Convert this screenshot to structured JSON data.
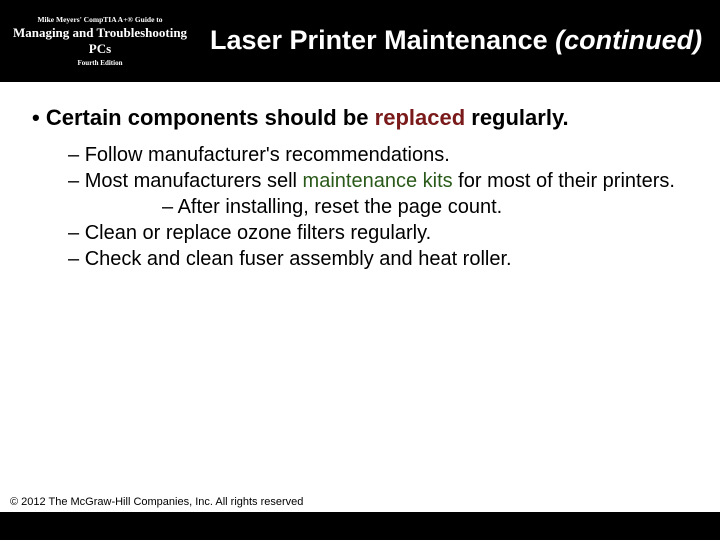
{
  "header": {
    "book": {
      "line1": "Mike Meyers' CompTIA A+® Guide to",
      "line2": "Managing and Troubleshooting PCs",
      "line3": "Fourth Edition"
    },
    "title_main": "Laser Printer Maintenance ",
    "title_cont": "(continued)"
  },
  "colors": {
    "header_bg": "#000000",
    "header_text": "#ffffff",
    "body_text": "#000000",
    "highlight_replaced": "#7a1a1a",
    "highlight_maintkits": "#2a5a1a"
  },
  "content": {
    "l1_pre": "Certain components should be ",
    "l1_hl": "replaced",
    "l1_post": " regularly.",
    "sub1": "Follow manufacturer's recommendations.",
    "sub2_pre": "Most manufacturers sell ",
    "sub2_hl": "maintenance kits",
    "sub2_post": " for most of their printers.",
    "sub2a": "After installing, reset the page count.",
    "sub3": "Clean or replace ozone filters regularly.",
    "sub4": "Check and clean fuser assembly and heat roller."
  },
  "footer": {
    "copyright": "© 2012 The McGraw-Hill Companies, Inc. All rights reserved"
  }
}
